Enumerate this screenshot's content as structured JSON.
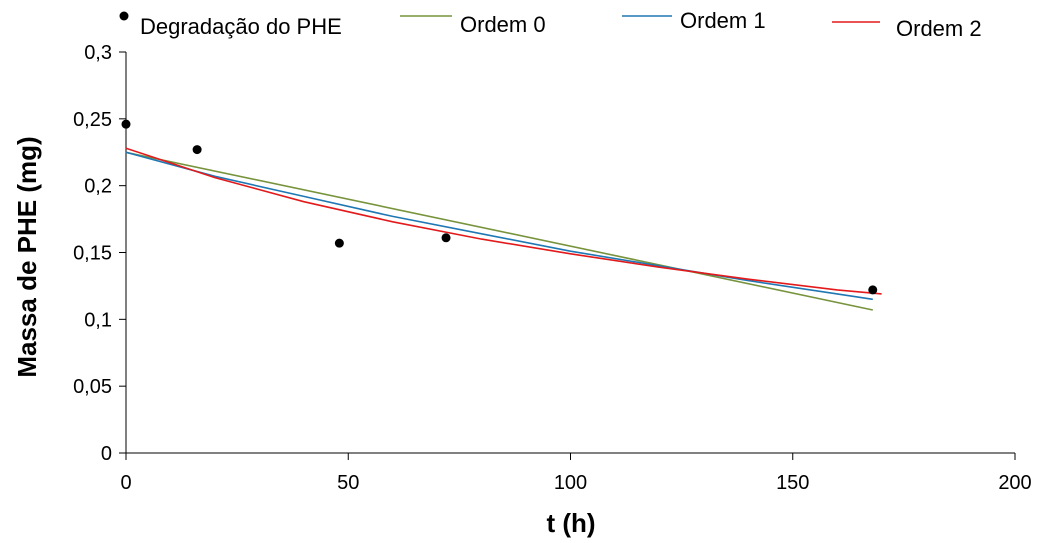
{
  "chart_data": {
    "type": "scatter",
    "xlabel": "t (h)",
    "ylabel": "Massa de PHE (mg)",
    "xlim": [
      0,
      200
    ],
    "ylim": [
      0,
      0.3
    ],
    "x_ticks": [
      0,
      50,
      100,
      150,
      200
    ],
    "x_tick_labels": [
      "0",
      "50",
      "100",
      "150",
      "200"
    ],
    "y_ticks": [
      0,
      0.05,
      0.1,
      0.15,
      0.2,
      0.25,
      0.3
    ],
    "y_tick_labels": [
      "0",
      "0,05",
      "0,1",
      "0,15",
      "0,2",
      "0,25",
      "0,3"
    ],
    "grid": false,
    "legend_position": "top",
    "series": [
      {
        "name": "Degradação do PHE",
        "kind": "points",
        "color": "#000000",
        "x": [
          0,
          16,
          48,
          72,
          168
        ],
        "y": [
          0.246,
          0.227,
          0.157,
          0.161,
          0.122
        ]
      },
      {
        "name": "Ordem 0",
        "kind": "line",
        "color": "#77933c",
        "x": [
          0,
          168
        ],
        "y": [
          0.225,
          0.107
        ]
      },
      {
        "name": "Ordem 1",
        "kind": "line",
        "color": "#1f77b4",
        "x": [
          0,
          20,
          40,
          60,
          80,
          100,
          120,
          140,
          160,
          168
        ],
        "y": [
          0.225,
          0.207,
          0.192,
          0.177,
          0.164,
          0.151,
          0.14,
          0.129,
          0.119,
          0.115
        ]
      },
      {
        "name": "Ordem 2",
        "kind": "line",
        "color": "#e31a1c",
        "x": [
          0,
          10,
          20,
          40,
          60,
          80,
          100,
          120,
          140,
          160,
          170
        ],
        "y": [
          0.228,
          0.217,
          0.206,
          0.188,
          0.173,
          0.16,
          0.149,
          0.139,
          0.13,
          0.122,
          0.119
        ]
      }
    ]
  }
}
